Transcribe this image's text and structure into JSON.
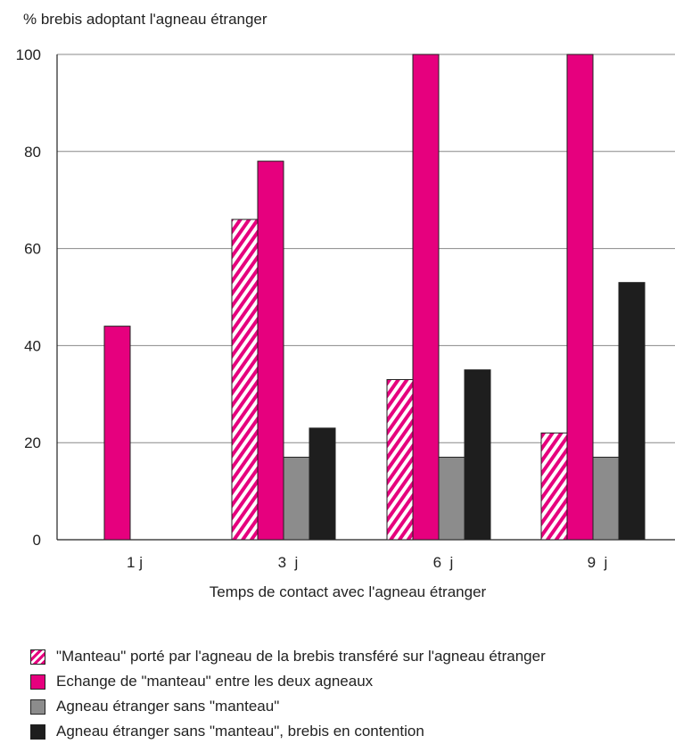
{
  "chart_data": {
    "type": "bar",
    "ylabel": "% brebis adoptant l'agneau étranger",
    "xlabel": "Temps de contact avec l'agneau étranger",
    "categories": [
      "1 j",
      "3  j",
      "6  j",
      "9  j"
    ],
    "ylim": [
      0,
      100
    ],
    "yticks": [
      0,
      20,
      40,
      60,
      80,
      100
    ],
    "grid": true,
    "legend_position": "bottom",
    "series": [
      {
        "name": "\"Manteau\" porté par l'agneau de la brebis transféré sur l'agneau étranger",
        "values": [
          null,
          66,
          33,
          22
        ],
        "color": "#e6007e",
        "pattern": "hatched"
      },
      {
        "name": "Echange de \"manteau\" entre les deux agneaux",
        "values": [
          44,
          78,
          100,
          100
        ],
        "color": "#e6007e",
        "pattern": "solid"
      },
      {
        "name": "Agneau étranger sans \"manteau\"",
        "values": [
          null,
          17,
          17,
          17
        ],
        "color": "#8c8c8c",
        "pattern": "solid"
      },
      {
        "name": "Agneau étranger sans \"manteau\", brebis en contention",
        "values": [
          null,
          23,
          35,
          53
        ],
        "color": "#1e1e1e",
        "pattern": "solid"
      }
    ]
  }
}
